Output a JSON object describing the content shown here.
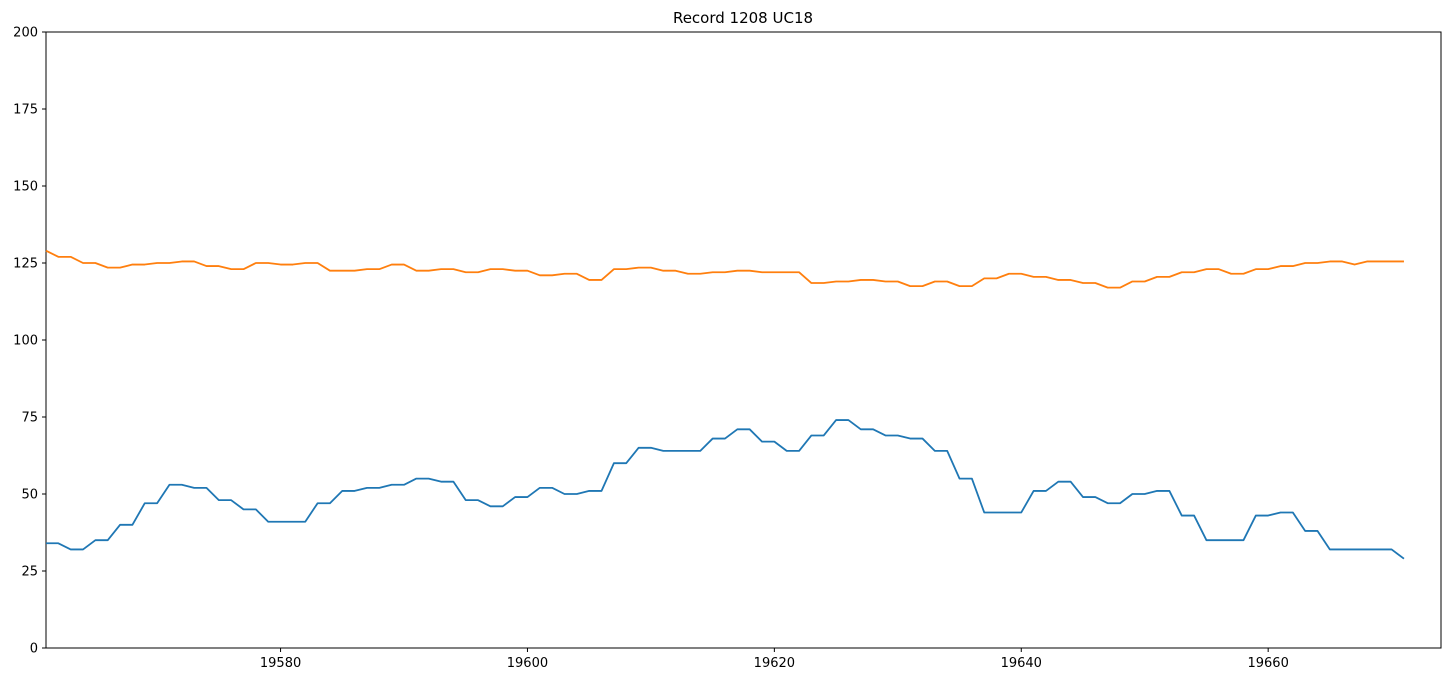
{
  "chart_data": {
    "type": "line",
    "title": "Record 1208 UC18",
    "xlabel": "",
    "ylabel": "",
    "xlim": [
      19561,
      19674
    ],
    "ylim": [
      0,
      200
    ],
    "x_ticks": [
      19580,
      19600,
      19620,
      19640,
      19660
    ],
    "y_ticks": [
      0,
      25,
      50,
      75,
      100,
      125,
      150,
      175,
      200
    ],
    "grid": false,
    "legend": "none",
    "x_start": 19561,
    "series": [
      {
        "color": "#1f77b4",
        "values": [
          34,
          34,
          32,
          32,
          35,
          35,
          40,
          40,
          47,
          47,
          53,
          53,
          52,
          52,
          48,
          48,
          45,
          45,
          41,
          41,
          41,
          41,
          47,
          47,
          51,
          51,
          52,
          52,
          53,
          53,
          55,
          55,
          54,
          54,
          48,
          48,
          46,
          46,
          49,
          49,
          52,
          52,
          50,
          50,
          51,
          51,
          60,
          60,
          65,
          65,
          64,
          64,
          64,
          64,
          68,
          68,
          71,
          71,
          67,
          67,
          64,
          64,
          69,
          69,
          74,
          74,
          71,
          71,
          69,
          69,
          68,
          68,
          64,
          64,
          55,
          55,
          44,
          44,
          44,
          44,
          51,
          51,
          54,
          54,
          49,
          49,
          47,
          47,
          50,
          50,
          51,
          51,
          43,
          43,
          35,
          35,
          35,
          35,
          43,
          43,
          44,
          44,
          38,
          38,
          32,
          32,
          32,
          32,
          32,
          32,
          29
        ]
      },
      {
        "color": "#ff7f0e",
        "values": [
          129,
          127,
          127,
          125,
          125,
          123.5,
          123.5,
          124.5,
          124.5,
          125,
          125,
          125.5,
          125.5,
          124,
          124,
          123,
          123,
          125,
          125,
          124.5,
          124.5,
          125,
          125,
          122.5,
          122.5,
          122.5,
          123,
          123,
          124.5,
          124.5,
          122.5,
          122.5,
          123,
          123,
          122,
          122,
          123,
          123,
          122.5,
          122.5,
          121,
          121,
          121.5,
          121.5,
          119.5,
          119.5,
          123,
          123,
          123.5,
          123.5,
          122.5,
          122.5,
          121.5,
          121.5,
          122,
          122,
          122.5,
          122.5,
          122,
          122,
          122,
          122,
          118.5,
          118.5,
          119,
          119,
          119.5,
          119.5,
          119,
          119,
          117.5,
          117.5,
          119,
          119,
          117.5,
          117.5,
          120,
          120,
          121.5,
          121.5,
          120.5,
          120.5,
          119.5,
          119.5,
          118.5,
          118.5,
          117,
          117,
          119,
          119,
          120.5,
          120.5,
          122,
          122,
          123,
          123,
          121.5,
          121.5,
          123,
          123,
          124,
          124,
          125,
          125,
          125.5,
          125.5,
          124.5,
          125.5,
          125.5,
          125.5,
          125.5
        ]
      }
    ]
  }
}
